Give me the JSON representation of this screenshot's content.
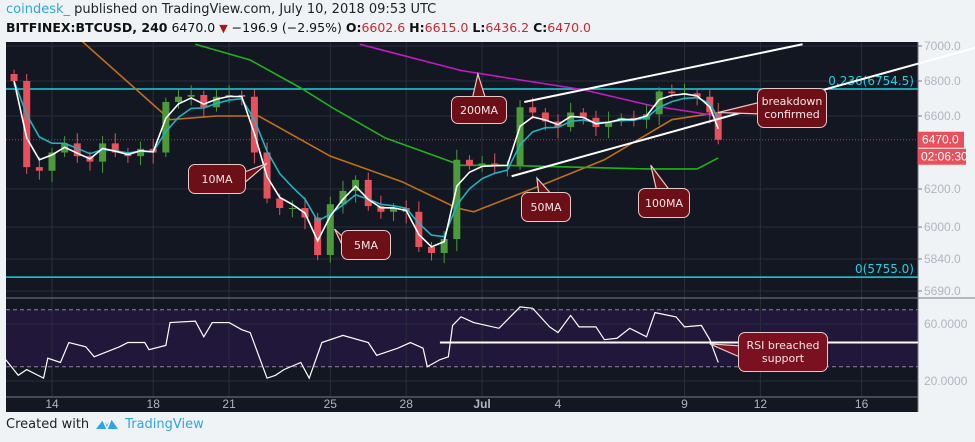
{
  "header": {
    "user": "coindesk_",
    "published": "published on TradingView.com, July 10, 2018 09:53 UTC",
    "symbol": "BITFINEX:BTCUSD, 240",
    "last": "6470.0",
    "change": "−196.9 (−2.95%)",
    "o_label": "O:",
    "o": "6602.6",
    "h_label": "H:",
    "h": "6615.0",
    "l_label": "L:",
    "l": "6436.2",
    "c_label": "C:",
    "c": "6470.0"
  },
  "footer": {
    "created_with": "Created with",
    "brand": "TradingView"
  },
  "colors": {
    "background": "#131722",
    "up": "#4c9a3a",
    "down": "#e8505b",
    "ma5": "#ffffff",
    "ma10": "#17b7c4",
    "ma50": "#c0701a",
    "ma100": "#1fb31a",
    "ma200": "#c21bc0",
    "fib": "#19d2e0",
    "rsi_band": "#21173a",
    "callout": "#6d0f17"
  },
  "chart_data": [
    {
      "type": "candlestick",
      "interval": "240",
      "y_ticks": [
        "7000.0",
        "6800.0",
        "6600.0",
        "6200.0",
        "6000.0",
        "5840.0",
        "5690.0"
      ],
      "x_ticks": [
        "14",
        "18",
        "21",
        "25",
        "28",
        "Jul",
        "4",
        "9",
        "12",
        "16"
      ],
      "ylim": [
        5620,
        7040
      ],
      "grid": true,
      "last_price_label": "6470.0",
      "countdown_label": "02:06:30",
      "closes": [
        [
          "Jun 12 12:00",
          6800
        ],
        [
          "Jun 13 00:00",
          6320
        ],
        [
          "Jun 13 12:00",
          6300
        ],
        [
          "Jun 14 00:00",
          6400
        ],
        [
          "Jun 14 12:00",
          6450
        ],
        [
          "Jun 15 00:00",
          6380
        ],
        [
          "Jun 15 12:00",
          6350
        ],
        [
          "Jun 16 00:00",
          6450
        ],
        [
          "Jun 16 12:00",
          6400
        ],
        [
          "Jun 17 00:00",
          6380
        ],
        [
          "Jun 17 12:00",
          6420
        ],
        [
          "Jun 18 00:00",
          6400
        ],
        [
          "Jun 18 12:00",
          6680
        ],
        [
          "Jun 19 00:00",
          6710
        ],
        [
          "Jun 19 12:00",
          6720
        ],
        [
          "Jun 20 00:00",
          6650
        ],
        [
          "Jun 20 12:00",
          6710
        ],
        [
          "Jun 21 00:00",
          6720
        ],
        [
          "Jun 21 12:00",
          6710
        ],
        [
          "Jun 22 00:00",
          6400
        ],
        [
          "Jun 22 12:00",
          6150
        ],
        [
          "Jun 23 00:00",
          6100
        ],
        [
          "Jun 23 12:00",
          6100
        ],
        [
          "Jun 24 00:00",
          6050
        ],
        [
          "Jun 24 12:00",
          5860
        ],
        [
          "Jun 25 00:00",
          6120
        ],
        [
          "Jun 25 12:00",
          6190
        ],
        [
          "Jun 26 00:00",
          6250
        ],
        [
          "Jun 26 12:00",
          6110
        ],
        [
          "Jun 27 00:00",
          6080
        ],
        [
          "Jun 27 12:00",
          6100
        ],
        [
          "Jun 28 00:00",
          6080
        ],
        [
          "Jun 28 12:00",
          5900
        ],
        [
          "Jun 29 00:00",
          5870
        ],
        [
          "Jun 29 12:00",
          5940
        ],
        [
          "Jun 30 00:00",
          6360
        ],
        [
          "Jun 30 12:00",
          6330
        ],
        [
          "Jul 1 00:00",
          6340
        ],
        [
          "Jul 1 12:00",
          6330
        ],
        [
          "Jul 2 00:00",
          6330
        ],
        [
          "Jul 2 12:00",
          6650
        ],
        [
          "Jul 3 00:00",
          6620
        ],
        [
          "Jul 3 12:00",
          6570
        ],
        [
          "Jul 4 00:00",
          6540
        ],
        [
          "Jul 4 12:00",
          6620
        ],
        [
          "Jul 5 00:00",
          6590
        ],
        [
          "Jul 5 12:00",
          6540
        ],
        [
          "Jul 6 00:00",
          6570
        ],
        [
          "Jul 6 12:00",
          6590
        ],
        [
          "Jul 7 00:00",
          6580
        ],
        [
          "Jul 7 12:00",
          6610
        ],
        [
          "Jul 8 00:00",
          6740
        ],
        [
          "Jul 8 12:00",
          6730
        ],
        [
          "Jul 9 00:00",
          6730
        ],
        [
          "Jul 9 12:00",
          6710
        ],
        [
          "Jul 10 00:00",
          6620
        ],
        [
          "Jul 10 08:00",
          6470
        ]
      ],
      "moving_averages": {
        "ma50": [
          [
            "Jun 15 04:00",
            7030
          ],
          [
            "Jun 18 16:00",
            6580
          ],
          [
            "Jun 20 12:00",
            6600
          ],
          [
            "Jun 22 04:00",
            6600
          ],
          [
            "Jun 25 00:00",
            6380
          ],
          [
            "Jun 27 20:00",
            6240
          ],
          [
            "Jun 30 00:00",
            6100
          ],
          [
            "Jun 30 16:00",
            6080
          ],
          [
            "Jul 3 08:00",
            6220
          ],
          [
            "Jul 5 20:00",
            6360
          ],
          [
            "Jul 8 12:00",
            6580
          ],
          [
            "Jul 10 08:00",
            6620
          ]
        ],
        "ma100": [
          [
            "Jun 19 16:00",
            7010
          ],
          [
            "Jun 21 20:00",
            6920
          ],
          [
            "Jun 23 20:00",
            6760
          ],
          [
            "Jun 25 04:00",
            6640
          ],
          [
            "Jun 27 04:00",
            6480
          ],
          [
            "Jun 29 04:00",
            6380
          ],
          [
            "Jun 30 04:00",
            6330
          ],
          [
            "Jul 1 20:00",
            6330
          ],
          [
            "Jul 7 12:00",
            6310
          ],
          [
            "Jul 9 12:00",
            6310
          ],
          [
            "Jul 10 08:00",
            6370
          ]
        ],
        "ma200": [
          [
            "Jun 26 04:00",
            7010
          ],
          [
            "Jun 30 04:00",
            6860
          ],
          [
            "Jul 2 08:00",
            6810
          ],
          [
            "Jul 5 00:00",
            6750
          ],
          [
            "Jul 7 16:00",
            6660
          ],
          [
            "Jul 10 08:00",
            6600
          ]
        ]
      },
      "fib_levels": [
        {
          "label": "0.236(6754.5)",
          "price": 6754.5
        },
        {
          "label": "0(5755.0)",
          "price": 5755.0
        }
      ],
      "trend_lines": [
        {
          "from": [
            "Jul 2 16:00",
            6680
          ],
          "to": [
            "Jul 13 16:00",
            7010
          ]
        },
        {
          "from": [
            "Jul 2 04:00",
            6270
          ],
          "to": [
            "Jul 20 12:00",
            6990
          ]
        }
      ],
      "annotations": [
        {
          "text": "10MA",
          "at": [
            "Jun 22 12:00",
            6340
          ]
        },
        {
          "text": "5MA",
          "at": [
            "Jun 25 04:00",
            5990
          ]
        },
        {
          "text": "200MA",
          "at": [
            "Jun 30 20:00",
            6840
          ]
        },
        {
          "text": "50MA",
          "at": [
            "Jul 3 04:00",
            6260
          ]
        },
        {
          "text": "100MA",
          "at": [
            "Jul 7 16:00",
            6330
          ]
        },
        {
          "text": "breakdown confirmed",
          "at": [
            "Jul 10 08:00",
            6620
          ]
        }
      ]
    },
    {
      "type": "line",
      "name": "RSI",
      "y_ticks": [
        "60.0000",
        "20.0000"
      ],
      "bands": [
        70,
        30
      ],
      "ylim": [
        9,
        77
      ],
      "values": [
        [
          "Jun 12 04:00",
          35
        ],
        [
          "Jun 12 16:00",
          24
        ],
        [
          "Jun 13 00:00",
          28
        ],
        [
          "Jun 13 16:00",
          22
        ],
        [
          "Jun 13 20:00",
          36
        ],
        [
          "Jun 14 08:00",
          33
        ],
        [
          "Jun 14 16:00",
          47
        ],
        [
          "Jun 15 08:00",
          44
        ],
        [
          "Jun 15 16:00",
          37
        ],
        [
          "Jun 16 16:00",
          44
        ],
        [
          "Jun 17 00:00",
          47
        ],
        [
          "Jun 17 16:00",
          47
        ],
        [
          "Jun 17 20:00",
          42
        ],
        [
          "Jun 18 12:00",
          45
        ],
        [
          "Jun 18 16:00",
          61
        ],
        [
          "Jun 19 16:00",
          62
        ],
        [
          "Jun 20 00:00",
          51
        ],
        [
          "Jun 20 08:00",
          61
        ],
        [
          "Jun 21 00:00",
          61
        ],
        [
          "Jun 21 12:00",
          56
        ],
        [
          "Jun 21 20:00",
          54
        ],
        [
          "Jun 22 12:00",
          22
        ],
        [
          "Jun 22 20:00",
          24
        ],
        [
          "Jun 23 04:00",
          28
        ],
        [
          "Jun 23 20:00",
          33
        ],
        [
          "Jun 24 04:00",
          22
        ],
        [
          "Jun 24 16:00",
          47
        ],
        [
          "Jun 25 12:00",
          52
        ],
        [
          "Jun 26 12:00",
          47
        ],
        [
          "Jun 26 20:00",
          38
        ],
        [
          "Jun 27 16:00",
          43
        ],
        [
          "Jun 28 04:00",
          47
        ],
        [
          "Jun 28 16:00",
          43
        ],
        [
          "Jun 28 20:00",
          30
        ],
        [
          "Jun 29 08:00",
          35
        ],
        [
          "Jun 29 16:00",
          37
        ],
        [
          "Jun 29 20:00",
          59
        ],
        [
          "Jun 30 04:00",
          65
        ],
        [
          "Jun 30 16:00",
          61
        ],
        [
          "Jul 1 16:00",
          57
        ],
        [
          "Jul 2 12:00",
          72
        ],
        [
          "Jul 3 00:00",
          71
        ],
        [
          "Jul 3 16:00",
          58
        ],
        [
          "Jul 4 00:00",
          54
        ],
        [
          "Jul 4 12:00",
          66
        ],
        [
          "Jul 4 20:00",
          58
        ],
        [
          "Jul 5 12:00",
          58
        ],
        [
          "Jul 5 20:00",
          49
        ],
        [
          "Jul 6 08:00",
          50
        ],
        [
          "Jul 6 20:00",
          57
        ],
        [
          "Jul 7 12:00",
          51
        ],
        [
          "Jul 7 20:00",
          68
        ],
        [
          "Jul 8 16:00",
          65
        ],
        [
          "Jul 9 00:00",
          58
        ],
        [
          "Jul 9 16:00",
          59
        ],
        [
          "Jul 10 00:00",
          49
        ],
        [
          "Jul 10 08:00",
          33
        ]
      ],
      "support_line": {
        "from": "Jun 29 08:00",
        "value": 47
      },
      "annotation": {
        "text": "RSI breached support",
        "at": [
          "Jul 10 00:00",
          46
        ]
      }
    }
  ]
}
